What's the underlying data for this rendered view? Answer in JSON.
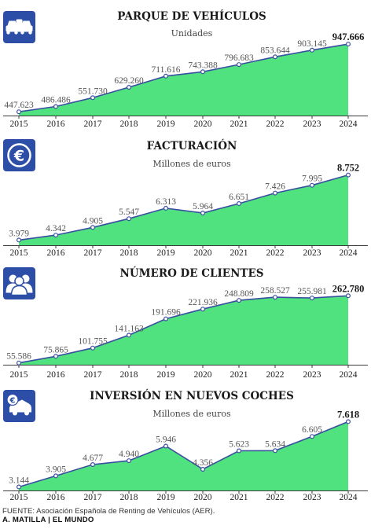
{
  "chart_data": [
    {
      "type": "area",
      "title": "PARQUE DE VEHÍCULOS",
      "subtitle": "Unidades",
      "icon": "cars-icon",
      "categories": [
        "2015",
        "2016",
        "2017",
        "2018",
        "2019",
        "2020",
        "2021",
        "2022",
        "2023",
        "2024"
      ],
      "values": [
        447623,
        486486,
        551730,
        629260,
        711616,
        743388,
        796683,
        853644,
        903145,
        947666
      ],
      "labels": [
        "447.623",
        "486.486",
        "551.730",
        "629.260",
        "711.616",
        "743.388",
        "796.683",
        "853.644",
        "903.145",
        "947.666"
      ],
      "ylim": [
        420000,
        960000
      ],
      "grid": false
    },
    {
      "type": "area",
      "title": "FACTURACIÓN",
      "subtitle": "Millones de euros",
      "icon": "euro-coin-icon",
      "categories": [
        "2015",
        "2016",
        "2017",
        "2018",
        "2019",
        "2020",
        "2021",
        "2022",
        "2023",
        "2024"
      ],
      "values": [
        3.979,
        4.342,
        4.905,
        5.547,
        6.313,
        5.964,
        6.651,
        7.426,
        7.995,
        8.752
      ],
      "labels": [
        "3.979",
        "4.342",
        "4.905",
        "5.547",
        "6.313",
        "5.964",
        "6.651",
        "7.426",
        "7.995",
        "8.752"
      ],
      "ylim": [
        3.6,
        8.9
      ],
      "grid": false
    },
    {
      "type": "area",
      "title": "NÚMERO DE CLIENTES",
      "subtitle": "",
      "icon": "clients-icon",
      "categories": [
        "2015",
        "2016",
        "2017",
        "2018",
        "2019",
        "2020",
        "2021",
        "2022",
        "2023",
        "2024"
      ],
      "values": [
        55586,
        75865,
        101755,
        141163,
        191696,
        221936,
        248809,
        258527,
        255981,
        262780
      ],
      "labels": [
        "55.586",
        "75.865",
        "101.755",
        "141.163",
        "191.696",
        "221.936",
        "248.809",
        "258.527",
        "255.981",
        "262.780"
      ],
      "ylim": [
        50000,
        266000
      ],
      "grid": false
    },
    {
      "type": "area",
      "title": "INVERSIÓN EN NUEVOS COCHES",
      "subtitle": "Millones de euros",
      "icon": "euro-car-icon",
      "categories": [
        "2015",
        "2016",
        "2017",
        "2018",
        "2019",
        "2020",
        "2021",
        "2022",
        "2023",
        "2024"
      ],
      "values": [
        3.144,
        3.905,
        4.677,
        4.94,
        5.946,
        4.356,
        5.623,
        5.634,
        6.605,
        7.618
      ],
      "labels": [
        "3.144",
        "3.905",
        "4.677",
        "4.940",
        "5.946",
        "4.356",
        "5.623",
        "5.634",
        "6.605",
        "7.618"
      ],
      "ylim": [
        2.9,
        7.75
      ],
      "grid": false
    }
  ],
  "colors": {
    "area_fill": "#4fe27f",
    "line": "#3a4fa0",
    "marker_fill": "#ffffff",
    "icon_bg": "#2c4ea6"
  },
  "footer": {
    "source": "FUENTE: Asociación Española de Renting de Vehículos (AER).",
    "credit": "A. MATILLA | EL MUNDO"
  }
}
